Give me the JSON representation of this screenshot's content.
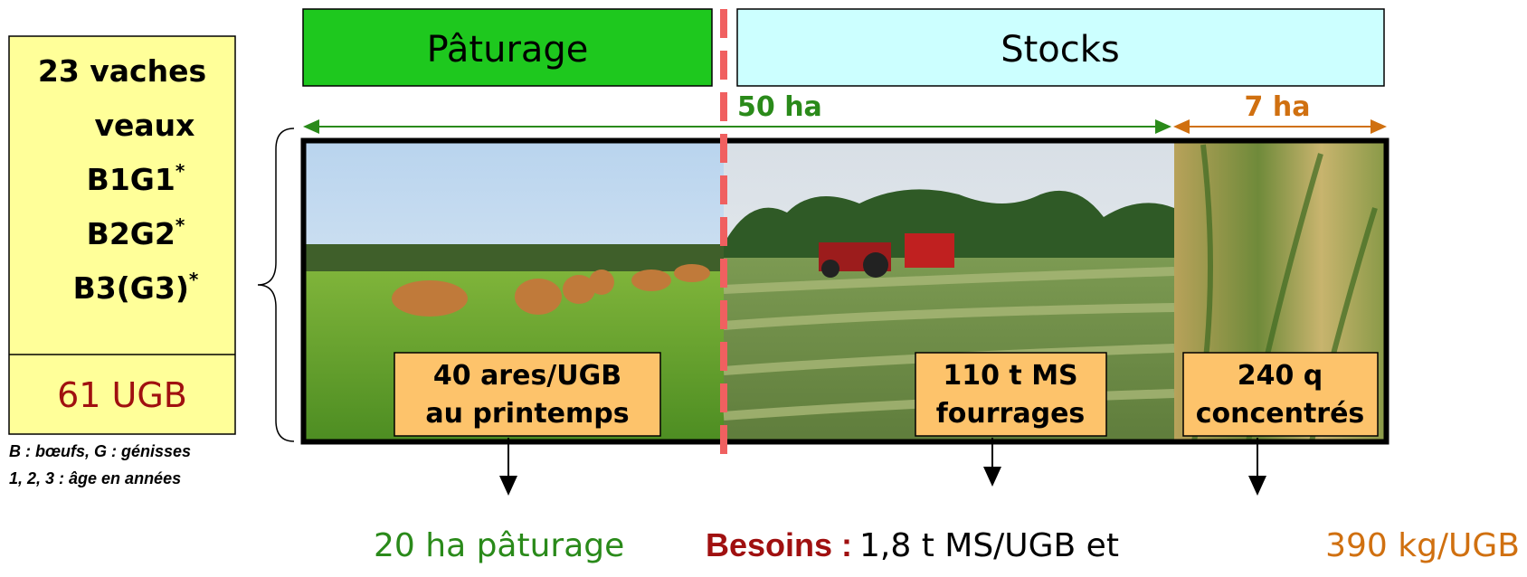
{
  "header": {
    "left": "Pâturage",
    "right": "Stocks"
  },
  "areas": {
    "main": "50 ha",
    "extra": "7 ha"
  },
  "herd": {
    "lines": [
      {
        "text": "23 vaches"
      },
      {
        "text": "veaux"
      },
      {
        "text": "B1G1",
        "sup": "*"
      },
      {
        "text": "B2G2",
        "sup": "*"
      },
      {
        "text": "B3(G3)",
        "sup": "*"
      }
    ],
    "total": "61 UGB"
  },
  "footnote": [
    "B : bœufs, G : génisses",
    "1, 2, 3 : âge en années"
  ],
  "labels": [
    [
      "40 ares/UGB",
      "au printemps"
    ],
    [
      "110 t MS",
      "fourrages"
    ],
    [
      "240 q",
      "concentrés"
    ]
  ],
  "bottom": {
    "pasture": "20 ha pâturage",
    "needs_label": "Besoins :",
    "needs_forage": "1,8 t MS/UGB et",
    "needs_concentrate": "390 kg/UGB"
  }
}
